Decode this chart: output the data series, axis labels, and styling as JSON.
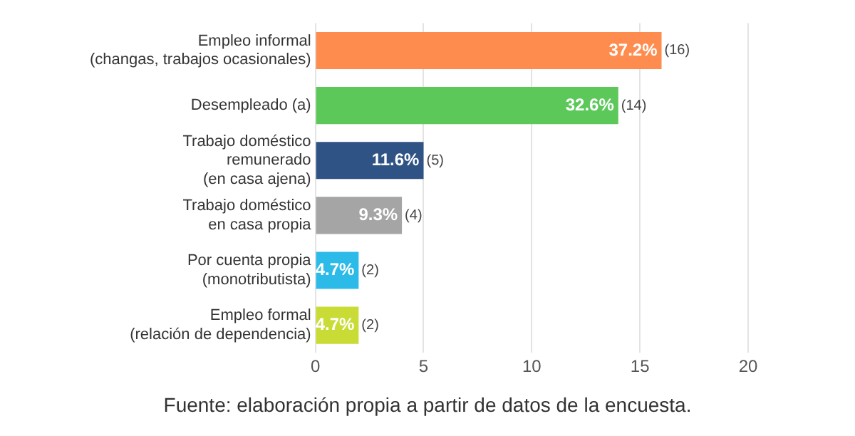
{
  "chart_data": {
    "type": "bar",
    "orientation": "horizontal",
    "categories": [
      "Empleo informal\n(changas, trabajos ocasionales)",
      "Desempleado (a)",
      "Trabajo doméstico\nremunerado\n(en casa ajena)",
      "Trabajo doméstico\nen casa propia",
      "Por cuenta propia\n(monotributista)",
      "Empleo formal\n(relación de dependencia)"
    ],
    "values": [
      16,
      14,
      5,
      4,
      2,
      2
    ],
    "colors": [
      "#ff8c4f",
      "#5cc85a",
      "#2f5384",
      "#a5a5a5",
      "#2cbbe8",
      "#c9dc35"
    ],
    "value_labels": [
      "37.2% (16)",
      "32.6% (14)",
      "11.6% (5)",
      "9.3% (4)",
      "4.7% (2)",
      "4.7% (2)"
    ],
    "xlim": [
      0,
      20
    ],
    "xticks": [
      0,
      5,
      10,
      15,
      20
    ],
    "grid": "x",
    "annotations": [
      "Fuente: elaboración propia a partir de datos de la encuesta."
    ]
  }
}
